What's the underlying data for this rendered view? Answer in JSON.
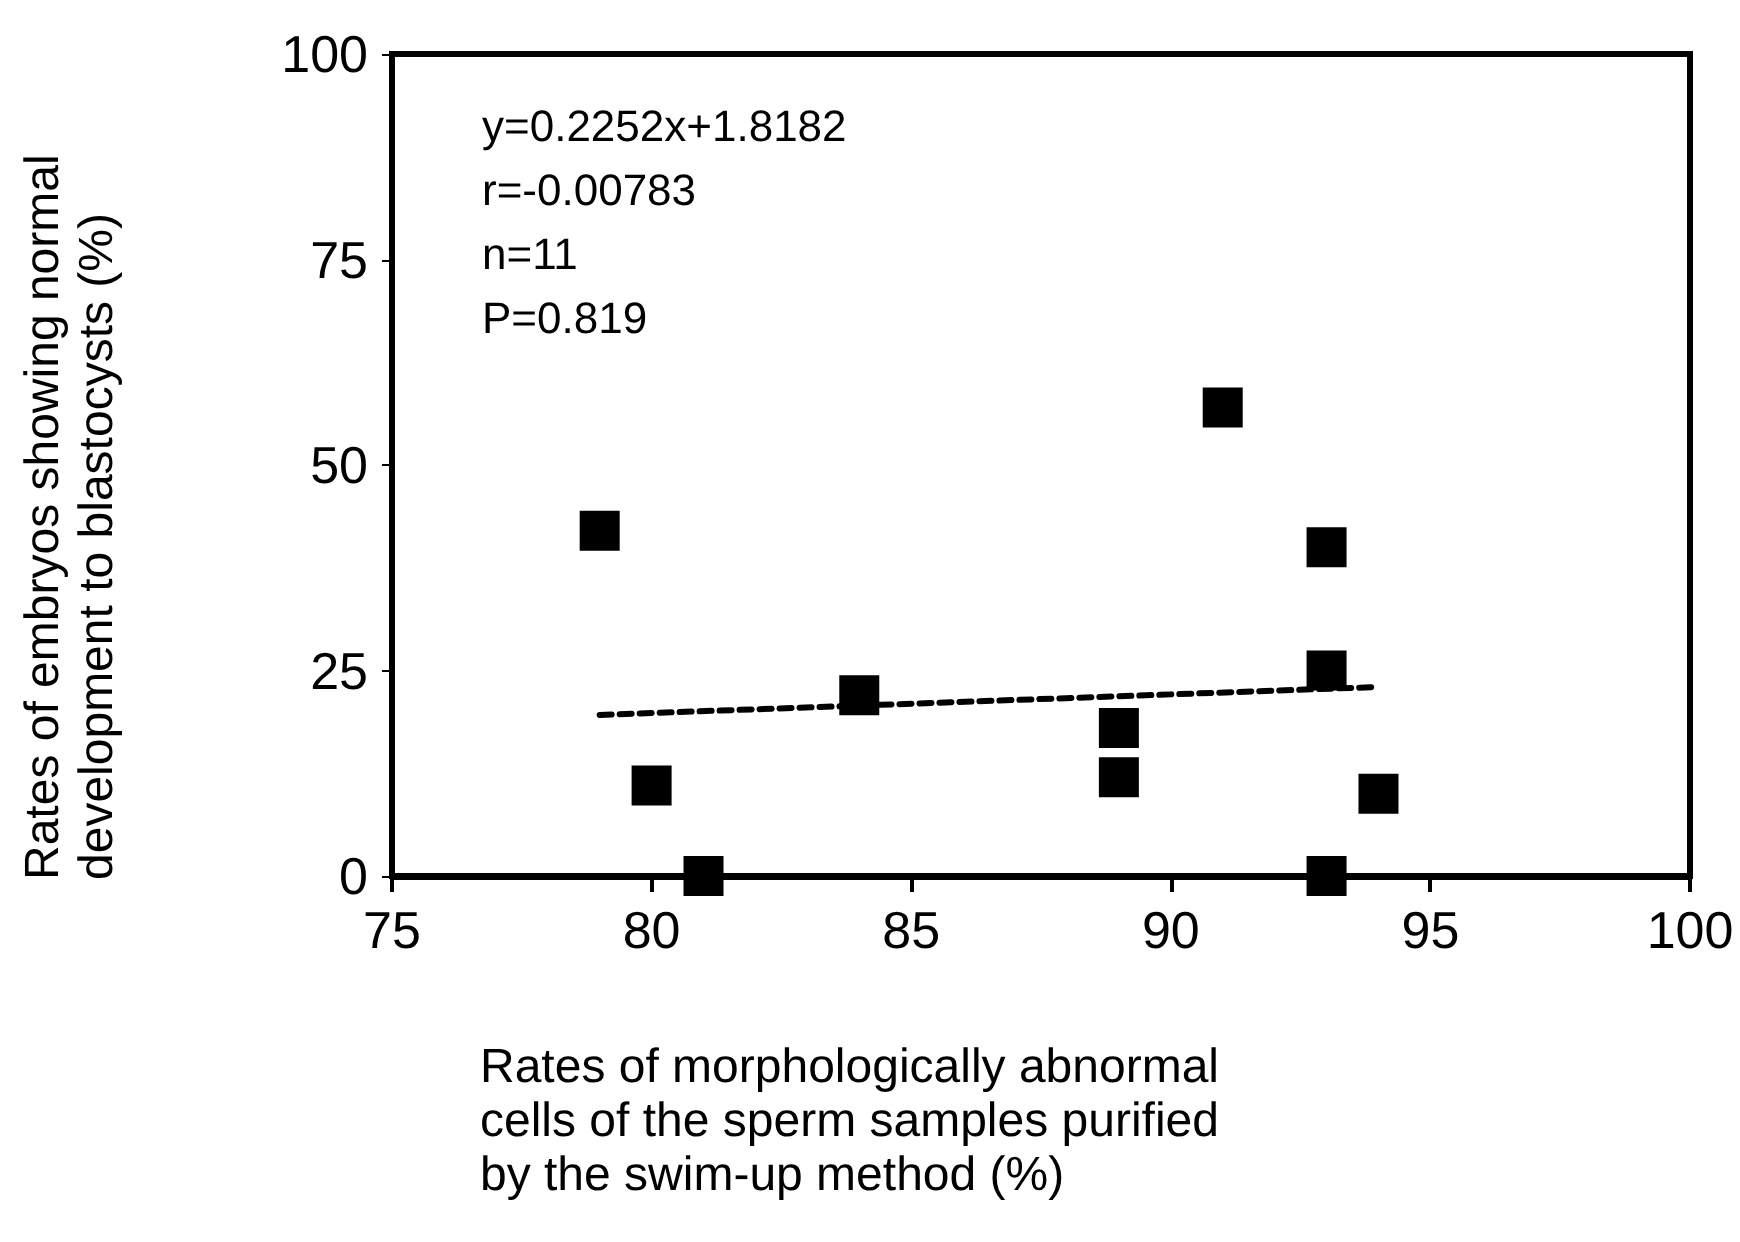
{
  "chart_data": {
    "type": "scatter",
    "xlabel": "Rates of morphologically abnormal cells of the sperm samples purified by the swim-up method (%)",
    "ylabel": "Rates of embryos showing normal development to blastocysts (%)",
    "annotations": [
      "y=0.2252x+1.8182",
      "r=-0.00783",
      "n=11",
      "P=0.819"
    ],
    "series": [
      {
        "color": "#000000",
        "marker": "square",
        "x": [
          79,
          80,
          81,
          84,
          89,
          89,
          91,
          93,
          93,
          93,
          94
        ],
        "values": [
          42,
          11,
          0,
          22,
          18,
          12,
          57,
          40,
          25,
          0,
          10
        ]
      },
      {
        "type": "line",
        "color": "#000000",
        "line_style": "dashed",
        "marker": "none",
        "x": [
          79,
          94
        ],
        "values": [
          19.6,
          23.0
        ]
      }
    ],
    "xlim": [
      75,
      100
    ],
    "xticks": [
      75,
      80,
      85,
      90,
      95,
      100
    ],
    "ylim": [
      0,
      100
    ],
    "yticks": [
      0,
      25,
      50,
      75,
      100
    ]
  }
}
